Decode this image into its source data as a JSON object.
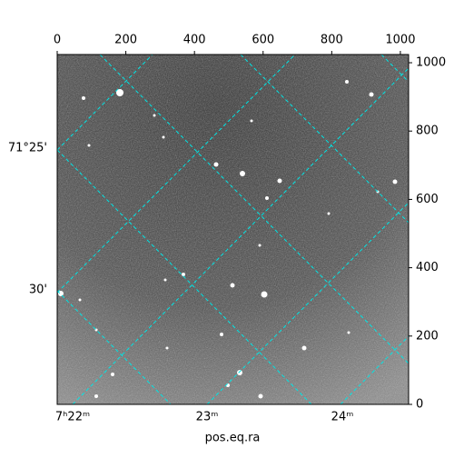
{
  "chart_data": {
    "type": "image",
    "xlabel": "pos.eq.ra",
    "xlim": [
      0,
      1024
    ],
    "xticks": [
      0,
      200,
      400,
      600,
      800,
      1000
    ],
    "ylim": [
      0,
      1024
    ],
    "yticks": [
      0,
      200,
      400,
      600,
      800,
      1000
    ],
    "ra_ticks": [
      "7ʰ22ᵐ",
      "23ᵐ",
      "24ᵐ"
    ],
    "dec_ticks": [
      "71°25'",
      "30'"
    ],
    "grid_color": "#00e5e5"
  }
}
